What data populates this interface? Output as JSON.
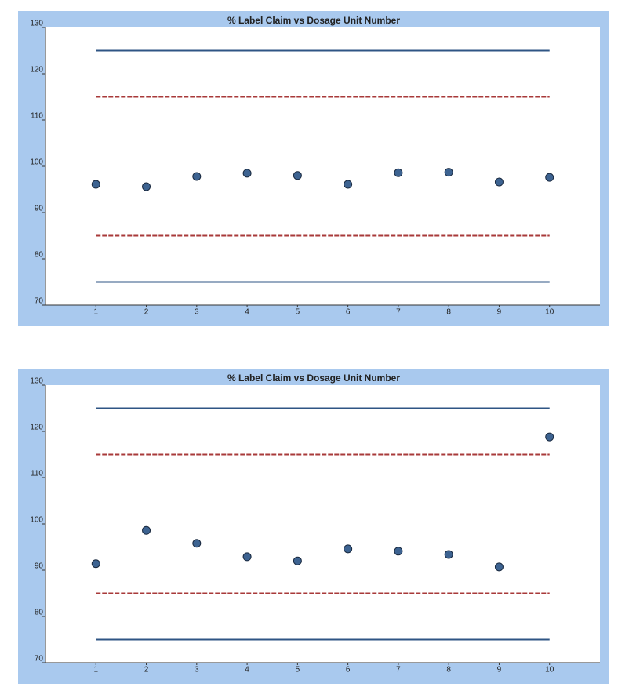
{
  "chart_data": [
    {
      "type": "scatter",
      "title": "% Label Claim vs Dosage Unit Number",
      "x": [
        1,
        2,
        3,
        4,
        5,
        6,
        7,
        8,
        9,
        10
      ],
      "values": [
        96.1,
        95.6,
        97.8,
        98.5,
        98.0,
        96.1,
        98.6,
        98.7,
        96.6,
        97.6
      ],
      "color": "#3d6391",
      "xlim": [
        0,
        11
      ],
      "xticks": [
        1,
        2,
        3,
        4,
        5,
        6,
        7,
        8,
        9,
        10
      ],
      "ylim": [
        70,
        130
      ],
      "yticks": [
        70,
        80,
        90,
        100,
        110,
        120,
        130
      ],
      "reference_lines": [
        {
          "value": 125,
          "color": "#2f5584",
          "style": "solid"
        },
        {
          "value": 115,
          "color": "#a83a3a",
          "style": "dashed"
        },
        {
          "value": 85,
          "color": "#a83a3a",
          "style": "dashed"
        },
        {
          "value": 75,
          "color": "#2f5584",
          "style": "solid"
        }
      ]
    },
    {
      "type": "scatter",
      "title": "% Label Claim vs Dosage Unit Number",
      "x": [
        1,
        2,
        3,
        4,
        5,
        6,
        7,
        8,
        9,
        10
      ],
      "values": [
        91.4,
        98.6,
        95.8,
        92.9,
        92.0,
        94.6,
        94.1,
        93.4,
        90.7,
        118.8
      ],
      "color": "#3d6391",
      "xlim": [
        0,
        11
      ],
      "xticks": [
        1,
        2,
        3,
        4,
        5,
        6,
        7,
        8,
        9,
        10
      ],
      "ylim": [
        70,
        130
      ],
      "yticks": [
        70,
        80,
        90,
        100,
        110,
        120,
        130
      ],
      "reference_lines": [
        {
          "value": 125,
          "color": "#2f5584",
          "style": "solid"
        },
        {
          "value": 115,
          "color": "#a83a3a",
          "style": "dashed"
        },
        {
          "value": 85,
          "color": "#a83a3a",
          "style": "dashed"
        },
        {
          "value": 75,
          "color": "#2f5584",
          "style": "solid"
        }
      ]
    }
  ]
}
